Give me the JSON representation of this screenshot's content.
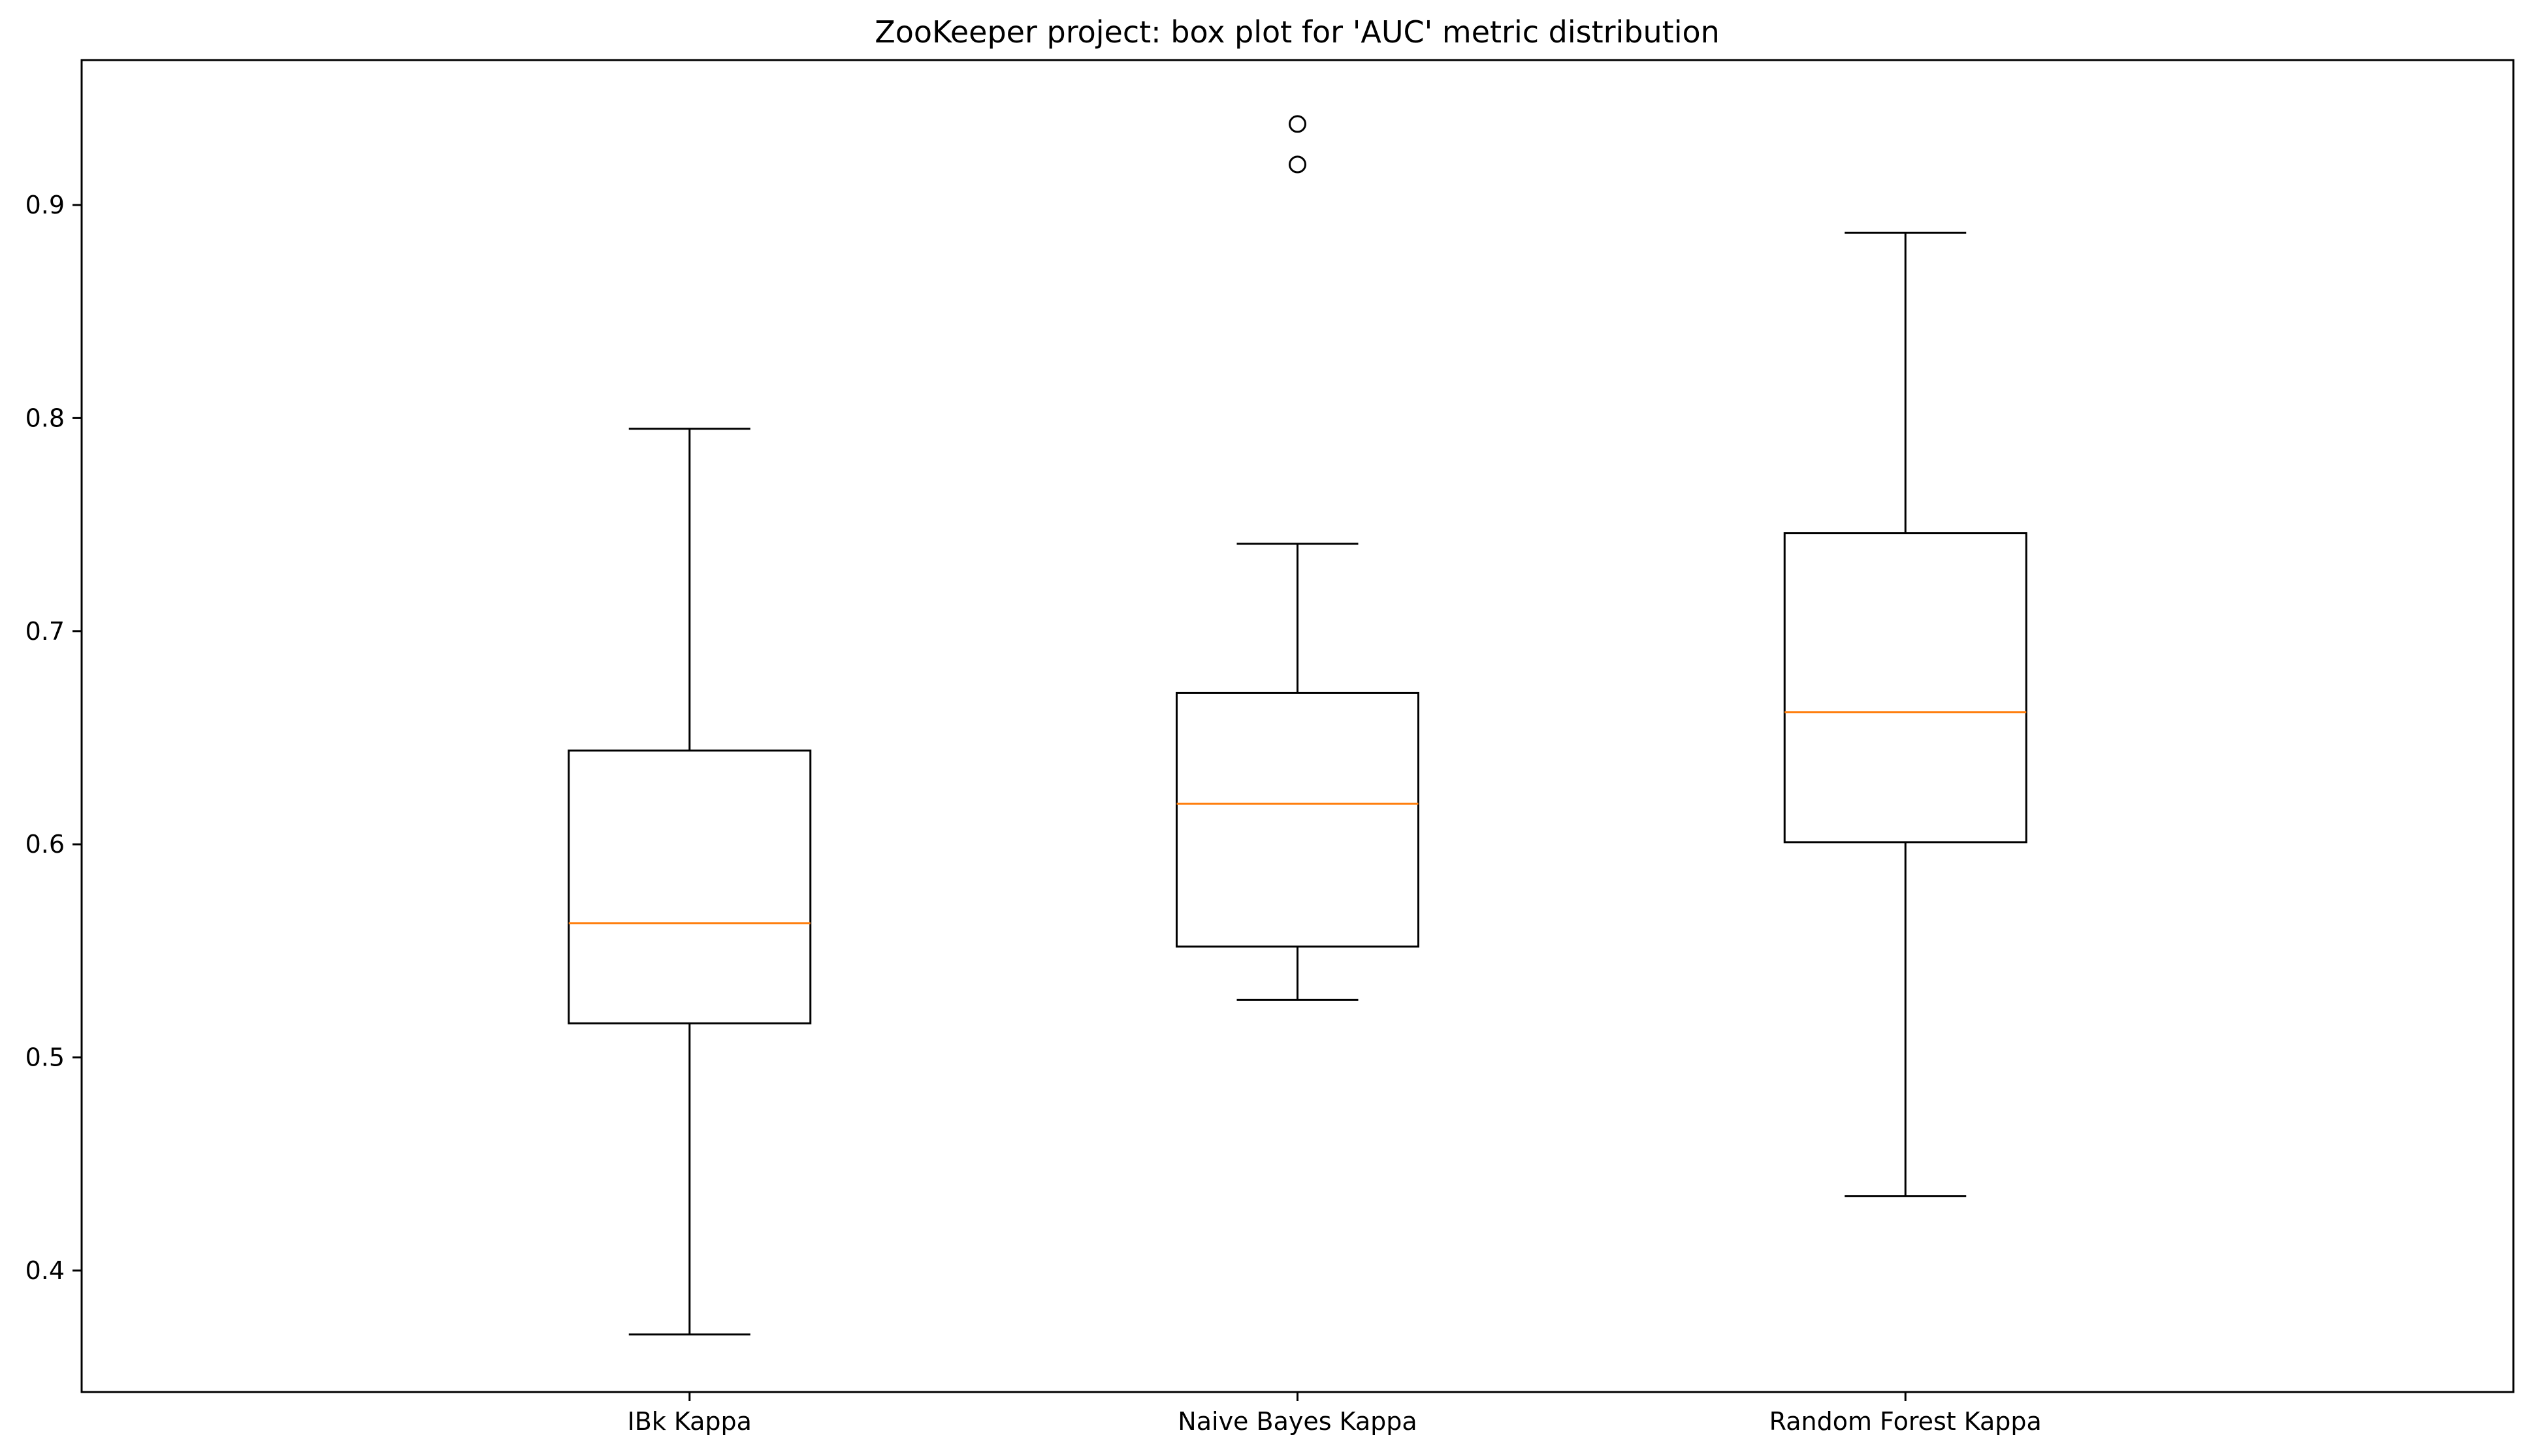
{
  "chart_data": {
    "type": "box",
    "title": "ZooKeeper project: box plot for 'AUC' metric distribution",
    "xlabel": "",
    "ylabel": "",
    "ylim": [
      0.343,
      0.968
    ],
    "y_ticks": [
      0.4,
      0.5,
      0.6,
      0.7,
      0.8,
      0.9
    ],
    "y_tick_labels": [
      "0.4",
      "0.5",
      "0.6",
      "0.7",
      "0.8",
      "0.9"
    ],
    "grid": false,
    "legend": "none",
    "categories": [
      "IBk Kappa",
      "Naive Bayes Kappa",
      "Random Forest Kappa"
    ],
    "boxes": [
      {
        "name": "IBk Kappa",
        "whisker_low": 0.37,
        "q1": 0.516,
        "median": 0.563,
        "q3": 0.644,
        "whisker_high": 0.795,
        "outliers": []
      },
      {
        "name": "Naive Bayes Kappa",
        "whisker_low": 0.527,
        "q1": 0.552,
        "median": 0.619,
        "q3": 0.671,
        "whisker_high": 0.741,
        "outliers": [
          0.919,
          0.938
        ]
      },
      {
        "name": "Random Forest Kappa",
        "whisker_low": 0.435,
        "q1": 0.601,
        "median": 0.662,
        "q3": 0.746,
        "whisker_high": 0.887,
        "outliers": []
      }
    ],
    "colors": {
      "box": "#000000",
      "median": "#ff7f0e",
      "axes": "#000000",
      "background": "#ffffff"
    }
  }
}
